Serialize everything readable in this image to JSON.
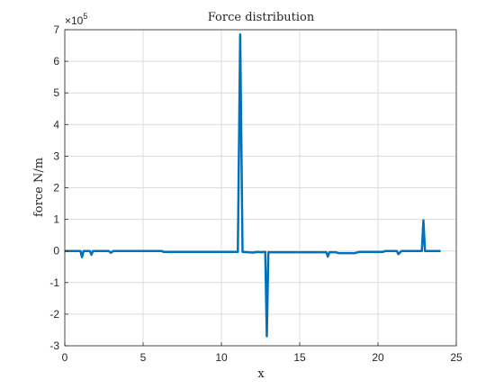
{
  "chart_data": {
    "type": "line",
    "title": "Force distribution",
    "xlabel": "x",
    "ylabel": "force N/m",
    "xlim": [
      0,
      25
    ],
    "ylim": [
      -300000,
      700000
    ],
    "grid": true,
    "x_ticks": [
      "0",
      "5",
      "10",
      "15",
      "20",
      "25"
    ],
    "y_ticks": [
      "-3",
      "-2",
      "-1",
      "0",
      "1",
      "2",
      "3",
      "4",
      "5",
      "6",
      "7"
    ],
    "y_exponent_base": "×10",
    "y_exponent_power": "5",
    "series": [
      {
        "color": "#0072BD",
        "points": [
          [
            0,
            0
          ],
          [
            1.0,
            0
          ],
          [
            1.1,
            -20000
          ],
          [
            1.2,
            0
          ],
          [
            1.6,
            0
          ],
          [
            1.7,
            -12000
          ],
          [
            1.8,
            0
          ],
          [
            2.8,
            0
          ],
          [
            2.95,
            -6000
          ],
          [
            3.1,
            0
          ],
          [
            6.2,
            0
          ],
          [
            6.3,
            -3000
          ],
          [
            11.05,
            -3000
          ],
          [
            11.2,
            685000
          ],
          [
            11.35,
            -3000
          ],
          [
            12.0,
            -5000
          ],
          [
            12.3,
            -3000
          ],
          [
            12.5,
            -4000
          ],
          [
            12.8,
            -3000
          ],
          [
            12.9,
            -270000
          ],
          [
            13.0,
            -4000
          ],
          [
            16.7,
            -4000
          ],
          [
            16.8,
            -18000
          ],
          [
            16.9,
            -4000
          ],
          [
            17.3,
            -4000
          ],
          [
            17.5,
            -7000
          ],
          [
            18.5,
            -7000
          ],
          [
            18.8,
            -3000
          ],
          [
            20.3,
            -3000
          ],
          [
            20.5,
            0
          ],
          [
            21.2,
            0
          ],
          [
            21.3,
            -10000
          ],
          [
            21.5,
            0
          ],
          [
            22.8,
            0
          ],
          [
            22.9,
            97000
          ],
          [
            23.0,
            0
          ],
          [
            24.0,
            0
          ]
        ]
      }
    ]
  }
}
